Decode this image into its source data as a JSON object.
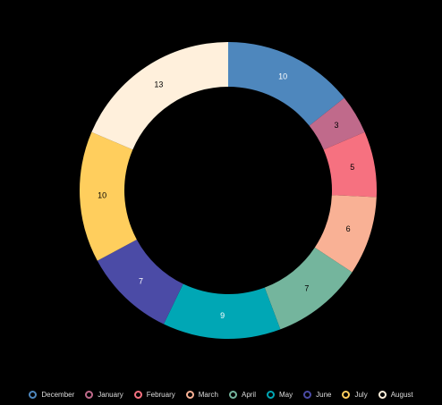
{
  "chart_data": {
    "type": "pie",
    "variant": "donut",
    "categories": [
      "December",
      "January",
      "February",
      "March",
      "April",
      "May",
      "June",
      "July",
      "August"
    ],
    "values": [
      10,
      3,
      5,
      6,
      7,
      9,
      7,
      10,
      13
    ],
    "colors": [
      "#4e87bd",
      "#c06a8b",
      "#f67180",
      "#f9b195",
      "#74b59d",
      "#00a7b5",
      "#4b4ba6",
      "#ffce5d",
      "#fff0dc"
    ],
    "label_colors": [
      "#ffffff",
      "#000000",
      "#000000",
      "#000000",
      "#000000",
      "#ffffff",
      "#ffffff",
      "#000000",
      "#000000"
    ],
    "start_angle_deg": 0,
    "direction": "clockwise",
    "legend_position": "bottom",
    "data_labels": "value"
  }
}
